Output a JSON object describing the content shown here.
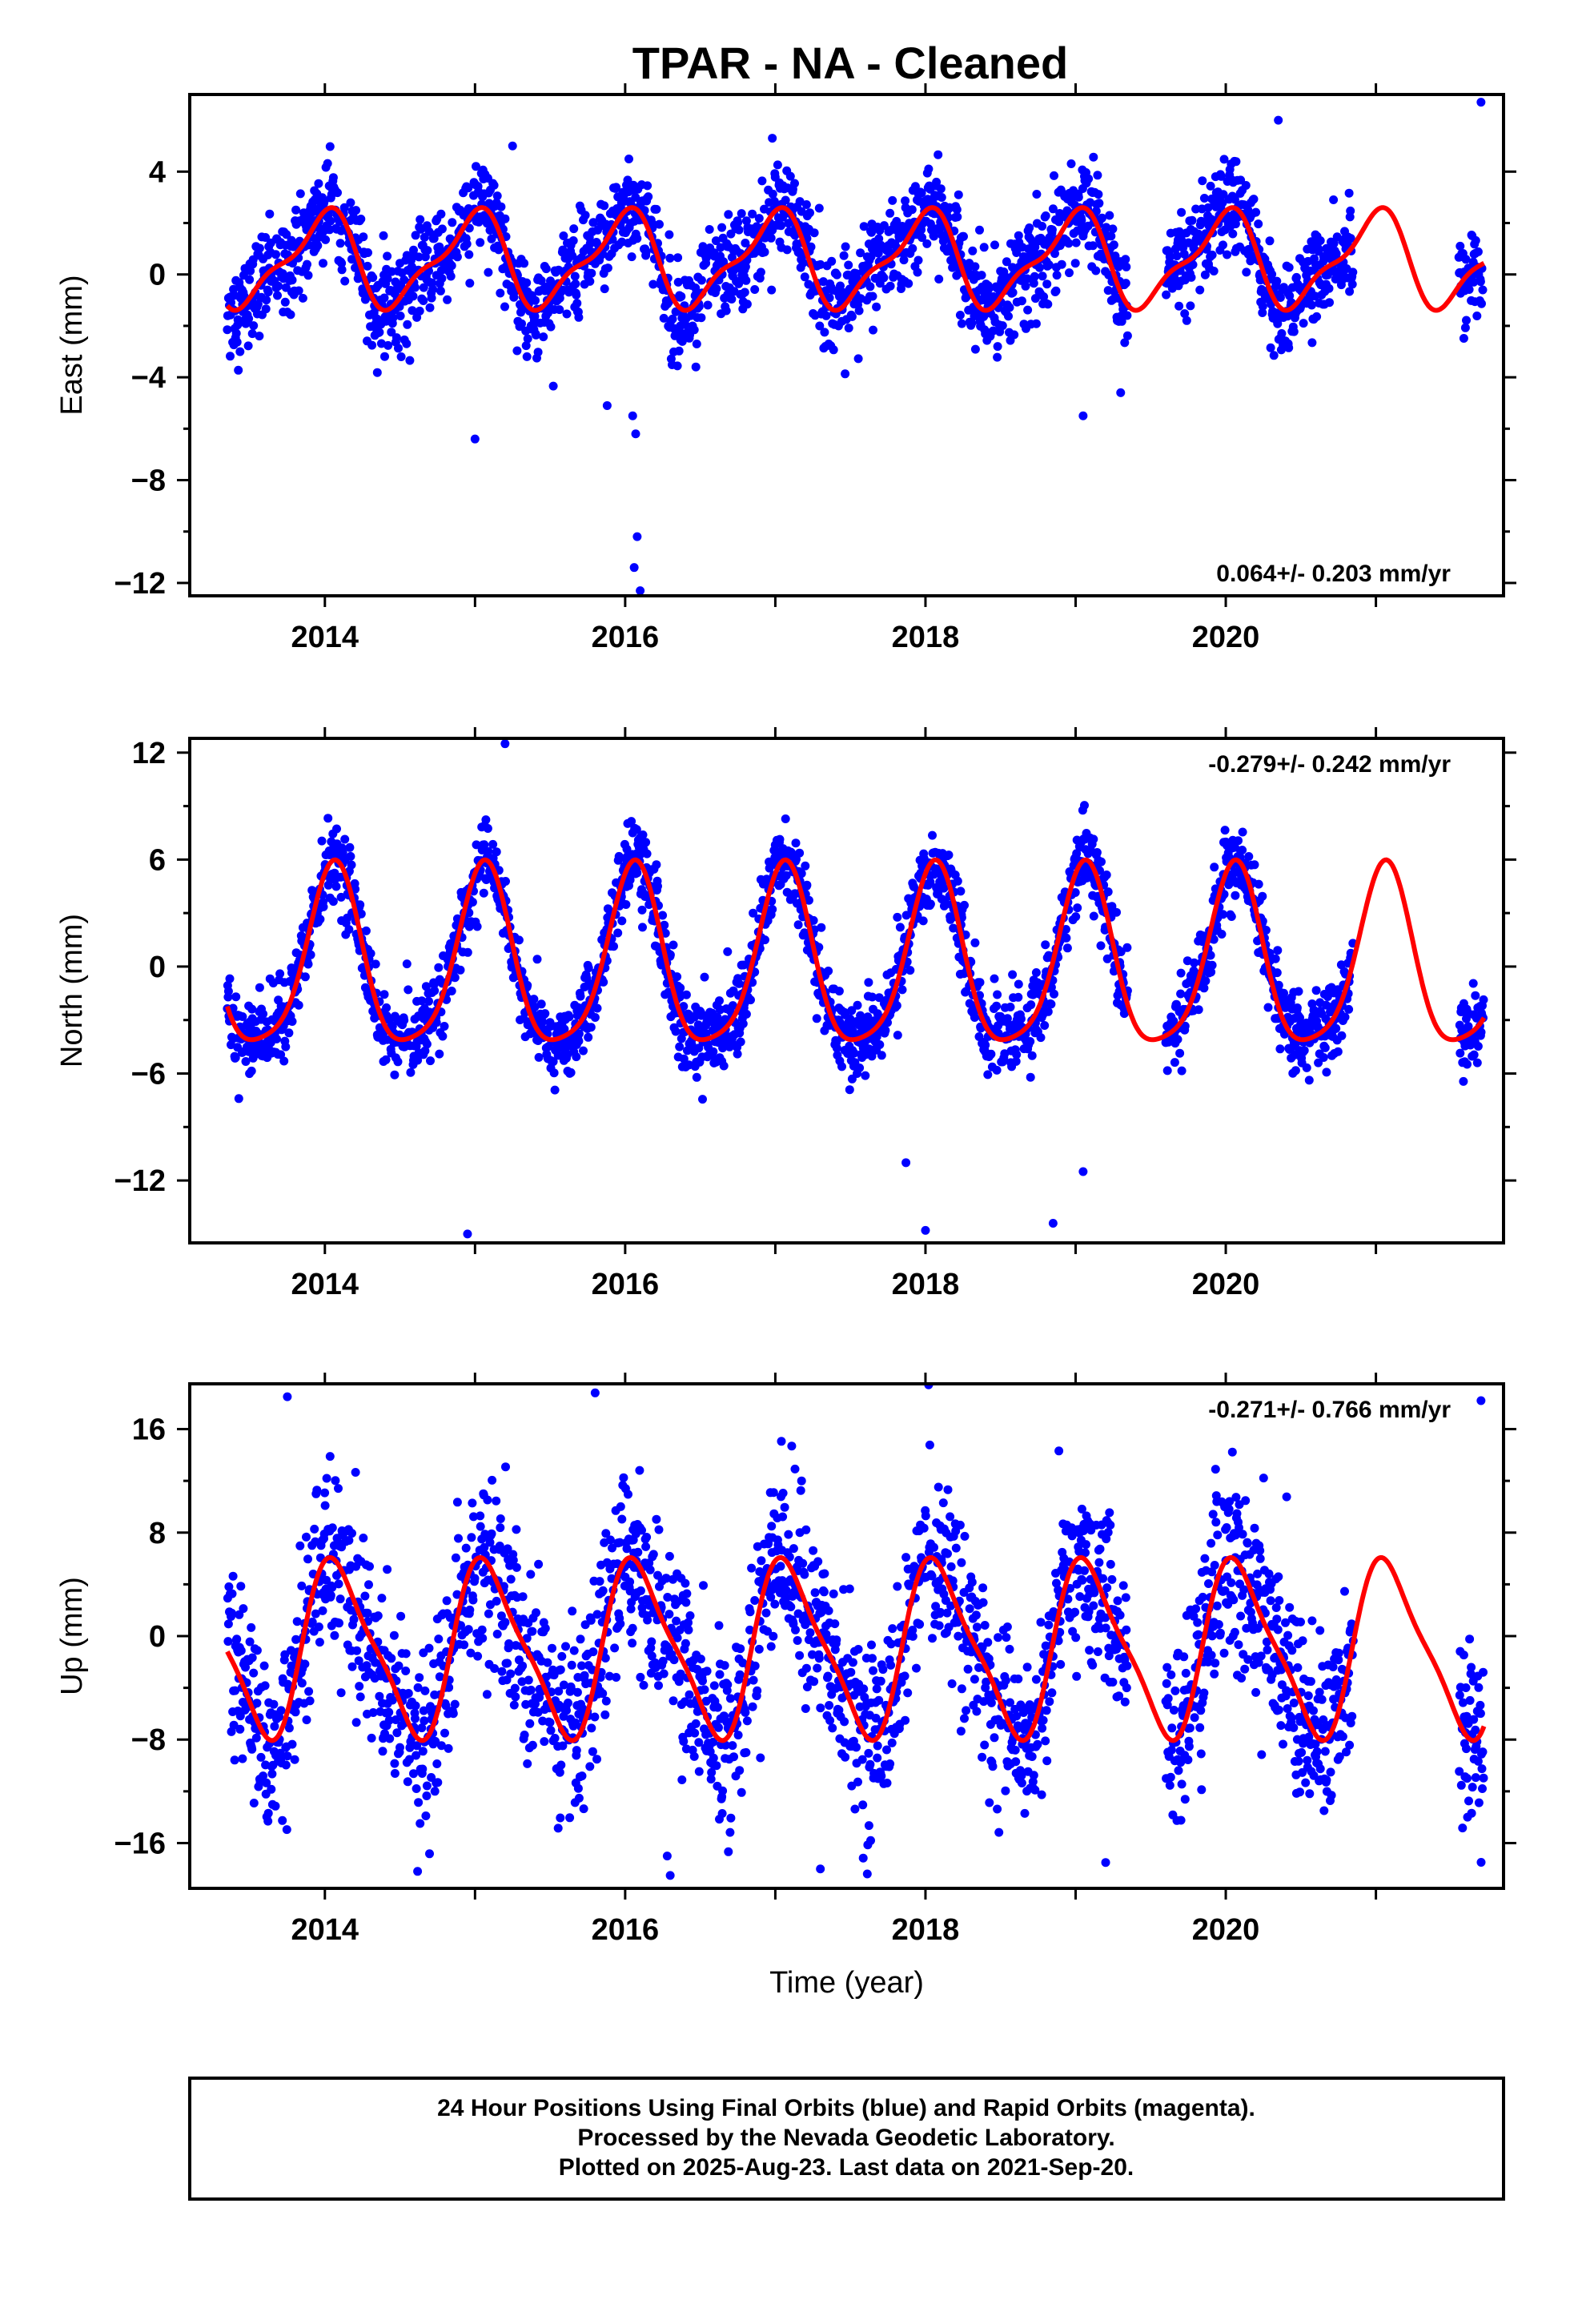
{
  "title": "TPAR  - NA - Cleaned",
  "footer": {
    "line1": "24 Hour Positions Using Final Orbits (blue) and Rapid Orbits (magenta).",
    "line2": "Processed by the Nevada Geodetic Laboratory.",
    "line3": "Plotted on 2025-Aug-23. Last data on 2021-Sep-20."
  },
  "colors": {
    "data": "#0000ff",
    "model": "#ff0000",
    "frame": "#000000"
  },
  "chart_data": [
    {
      "type": "scatter",
      "ylabel": "East (mm)",
      "xlabel": "",
      "rate_text": "0.064+/- 0.203 mm/yr",
      "rate_position": "bottom-right",
      "xlim": [
        2013.1,
        2021.85
      ],
      "ylim": [
        -12.5,
        7.0
      ],
      "xticks": [
        2014,
        2016,
        2018,
        2020
      ],
      "yticks": [
        4,
        0,
        -4,
        -8,
        -12
      ],
      "data_start": 2013.35,
      "data_end": 2021.72,
      "gaps": [
        [
          2019.35,
          2019.6
        ],
        [
          2020.85,
          2021.55
        ]
      ],
      "model": {
        "amp1": 1.7,
        "phase1": 1.7,
        "amp2": 0.6,
        "phase2": 0.4,
        "offset": 0.55
      },
      "noise": 0.9,
      "outliers": [
        [
          2015.0,
          -6.4
        ],
        [
          2015.25,
          5.0
        ],
        [
          2015.88,
          -5.1
        ],
        [
          2016.05,
          -5.5
        ],
        [
          2016.07,
          -6.2
        ],
        [
          2016.08,
          -10.2
        ],
        [
          2016.06,
          -11.4
        ],
        [
          2016.1,
          -12.3
        ],
        [
          2016.98,
          5.3
        ],
        [
          2019.05,
          -5.5
        ],
        [
          2019.3,
          -4.6
        ],
        [
          2020.35,
          6.0
        ],
        [
          2021.7,
          6.7
        ]
      ],
      "series": [
        {
          "name": ""
        }
      ]
    },
    {
      "type": "scatter",
      "ylabel": "North (mm)",
      "xlabel": "",
      "rate_text": "-0.279+/- 0.242 mm/yr",
      "rate_position": "top-right",
      "xlim": [
        2013.1,
        2021.85
      ],
      "ylim": [
        -15.5,
        12.8
      ],
      "xticks": [
        2014,
        2016,
        2018,
        2020
      ],
      "yticks": [
        12,
        6,
        0,
        -6,
        -12
      ],
      "data_start": 2013.35,
      "data_end": 2021.72,
      "gaps": [
        [
          2019.35,
          2019.6
        ],
        [
          2020.85,
          2021.55
        ]
      ],
      "model": {
        "amp1": 5.0,
        "phase1": 1.2,
        "amp2": 1.0,
        "phase2": 0.6,
        "offset": 0.0
      },
      "noise": 1.1,
      "outliers": [
        [
          2014.95,
          -15.0
        ],
        [
          2015.2,
          12.5
        ],
        [
          2016.05,
          7.5
        ],
        [
          2017.87,
          -11.0
        ],
        [
          2018.0,
          -14.8
        ],
        [
          2018.85,
          -14.4
        ],
        [
          2019.05,
          -11.5
        ]
      ],
      "series": [
        {
          "name": ""
        }
      ]
    },
    {
      "type": "scatter",
      "ylabel": "Up (mm)",
      "xlabel": "Time (year)",
      "rate_text": "-0.271+/- 0.766 mm/yr",
      "rate_position": "top-right",
      "xlim": [
        2013.1,
        2021.85
      ],
      "ylim": [
        -19.5,
        19.5
      ],
      "xticks": [
        2014,
        2016,
        2018,
        2020
      ],
      "yticks": [
        16,
        8,
        0,
        -8,
        -16
      ],
      "data_start": 2013.35,
      "data_end": 2021.72,
      "gaps": [
        [
          2019.35,
          2019.6
        ],
        [
          2020.85,
          2021.55
        ]
      ],
      "model": {
        "amp1": 6.5,
        "phase1": 1.0,
        "amp2": 1.5,
        "phase2": 2.0,
        "offset": -1.0
      },
      "noise": 3.5,
      "outliers": [
        [
          2013.75,
          18.5
        ],
        [
          2015.8,
          18.8
        ],
        [
          2016.3,
          -18.5
        ],
        [
          2016.28,
          -17.0
        ],
        [
          2017.3,
          -18.0
        ],
        [
          2019.2,
          -17.5
        ],
        [
          2021.7,
          18.2
        ]
      ],
      "series": [
        {
          "name": ""
        }
      ]
    }
  ]
}
